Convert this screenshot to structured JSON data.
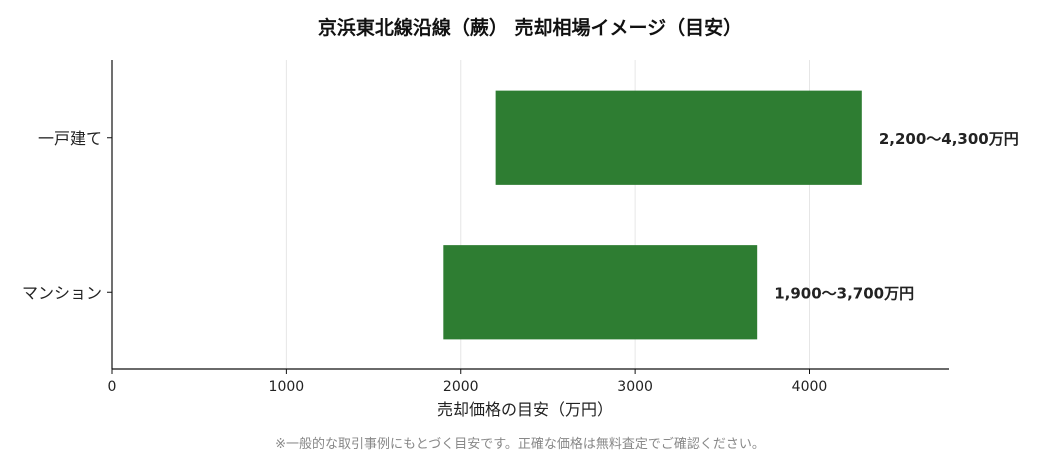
{
  "chart_data": {
    "type": "bar",
    "orientation": "horizontal",
    "title": "京浜東北線沿線（蕨） 売却相場イメージ（目安）",
    "xlabel": "売却価格の目安（万円）",
    "ylabel": "",
    "xlim": [
      0,
      4800
    ],
    "xticks": [
      "0",
      "1000",
      "2000",
      "3000",
      "4000"
    ],
    "grid": "vertical",
    "bar_color": "#2e7d32",
    "categories": [
      "一戸建て",
      "マンション"
    ],
    "ranges": [
      {
        "category": "一戸建て",
        "low": 2200,
        "high": 4300,
        "label": "2,200〜4,300万円"
      },
      {
        "category": "マンション",
        "low": 1900,
        "high": 3700,
        "label": "1,900〜3,700万円"
      }
    ],
    "footnote": "※一般的な取引事例にもとづく目安です。正確な価格は無料査定でご確認ください。"
  }
}
